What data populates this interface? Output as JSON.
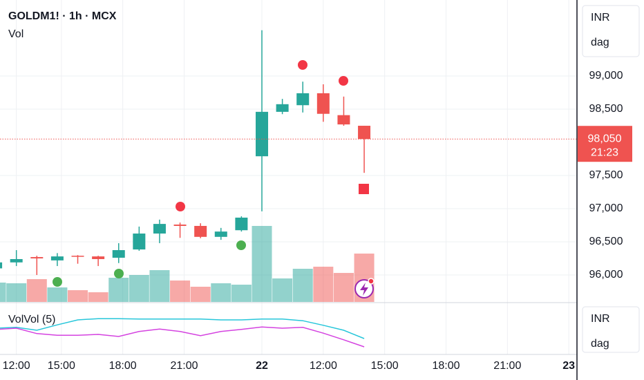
{
  "chart_data": {
    "type": "candlestick",
    "title": "GOLDM1! · 1h · MCX",
    "x": [
      0,
      1,
      2,
      3,
      4,
      5,
      6,
      7,
      8,
      9,
      10,
      11,
      12,
      13,
      14,
      15,
      16,
      17,
      18
    ],
    "open": [
      96100,
      96190,
      96270,
      96220,
      96290,
      96280,
      96260,
      96385,
      96625,
      96760,
      96740,
      96575,
      96675,
      97790,
      98460,
      98560,
      98740,
      98410,
      98250
    ],
    "high": [
      96240,
      96375,
      96290,
      96330,
      96300,
      96290,
      96480,
      96730,
      96835,
      96790,
      96780,
      96710,
      96885,
      99690,
      98655,
      98915,
      98875,
      98690,
      98250
    ],
    "low": [
      96080,
      96135,
      96000,
      96135,
      96170,
      96135,
      96180,
      96365,
      96480,
      96560,
      96555,
      96530,
      96655,
      96960,
      98425,
      98450,
      98310,
      98250,
      97540
    ],
    "close": [
      96190,
      96240,
      96250,
      96280,
      96280,
      96240,
      96375,
      96625,
      96770,
      96740,
      96575,
      96655,
      96865,
      98460,
      98575,
      98740,
      98430,
      98270,
      98050
    ],
    "up_color": "#26a69a",
    "down_color": "#ef5350",
    "xlim": [
      0.2,
      28.4
    ],
    "xticks": [
      {
        "value": 1,
        "label": "12:00"
      },
      {
        "value": 3.2,
        "label": "15:00"
      },
      {
        "value": 6.2,
        "label": "18:00"
      },
      {
        "value": 9.2,
        "label": "21:00"
      },
      {
        "value": 13,
        "label": "22"
      },
      {
        "value": 16,
        "label": "12:00"
      },
      {
        "value": 19,
        "label": "15:00"
      },
      {
        "value": 22,
        "label": "18:00"
      },
      {
        "value": 25,
        "label": "21:00"
      },
      {
        "value": 28,
        "label": "23"
      }
    ],
    "ylim": [
      95594,
      100146
    ],
    "yticks": [
      {
        "value": 96000,
        "label": "96,000"
      },
      {
        "value": 96500,
        "label": "96,500"
      },
      {
        "value": 97000,
        "label": "97,000"
      },
      {
        "value": 97500,
        "label": "97,500"
      },
      {
        "value": 98500,
        "label": "98,500"
      },
      {
        "value": 99000,
        "label": "99,000"
      }
    ],
    "grid": true,
    "last_price": {
      "value": 98050,
      "label": "98,050"
    },
    "countdown": "21:23",
    "currency": "INR",
    "scale_mode": "dag",
    "volume": {
      "name": "Vol",
      "values": [
        28,
        27,
        33,
        21,
        17,
        14,
        35,
        39,
        46,
        31,
        22,
        27,
        25,
        110,
        34,
        48,
        51,
        42,
        70
      ],
      "ylim": [
        0,
        437
      ]
    },
    "indicator": {
      "name": "VolVol (5)",
      "ylim": [
        0,
        100
      ],
      "currency": "INR",
      "scale_mode": "dag",
      "series": [
        {
          "color": "#26c6da",
          "values": [
            50,
            52,
            45,
            58,
            70,
            73,
            73,
            72,
            72,
            72,
            72,
            70,
            70,
            72,
            72,
            68,
            57,
            45,
            25
          ]
        },
        {
          "color": "#d442e0",
          "values": [
            47,
            50,
            37,
            33,
            33,
            35,
            30,
            42,
            48,
            42,
            32,
            42,
            47,
            53,
            50,
            52,
            38,
            22,
            5
          ]
        }
      ]
    }
  }
}
